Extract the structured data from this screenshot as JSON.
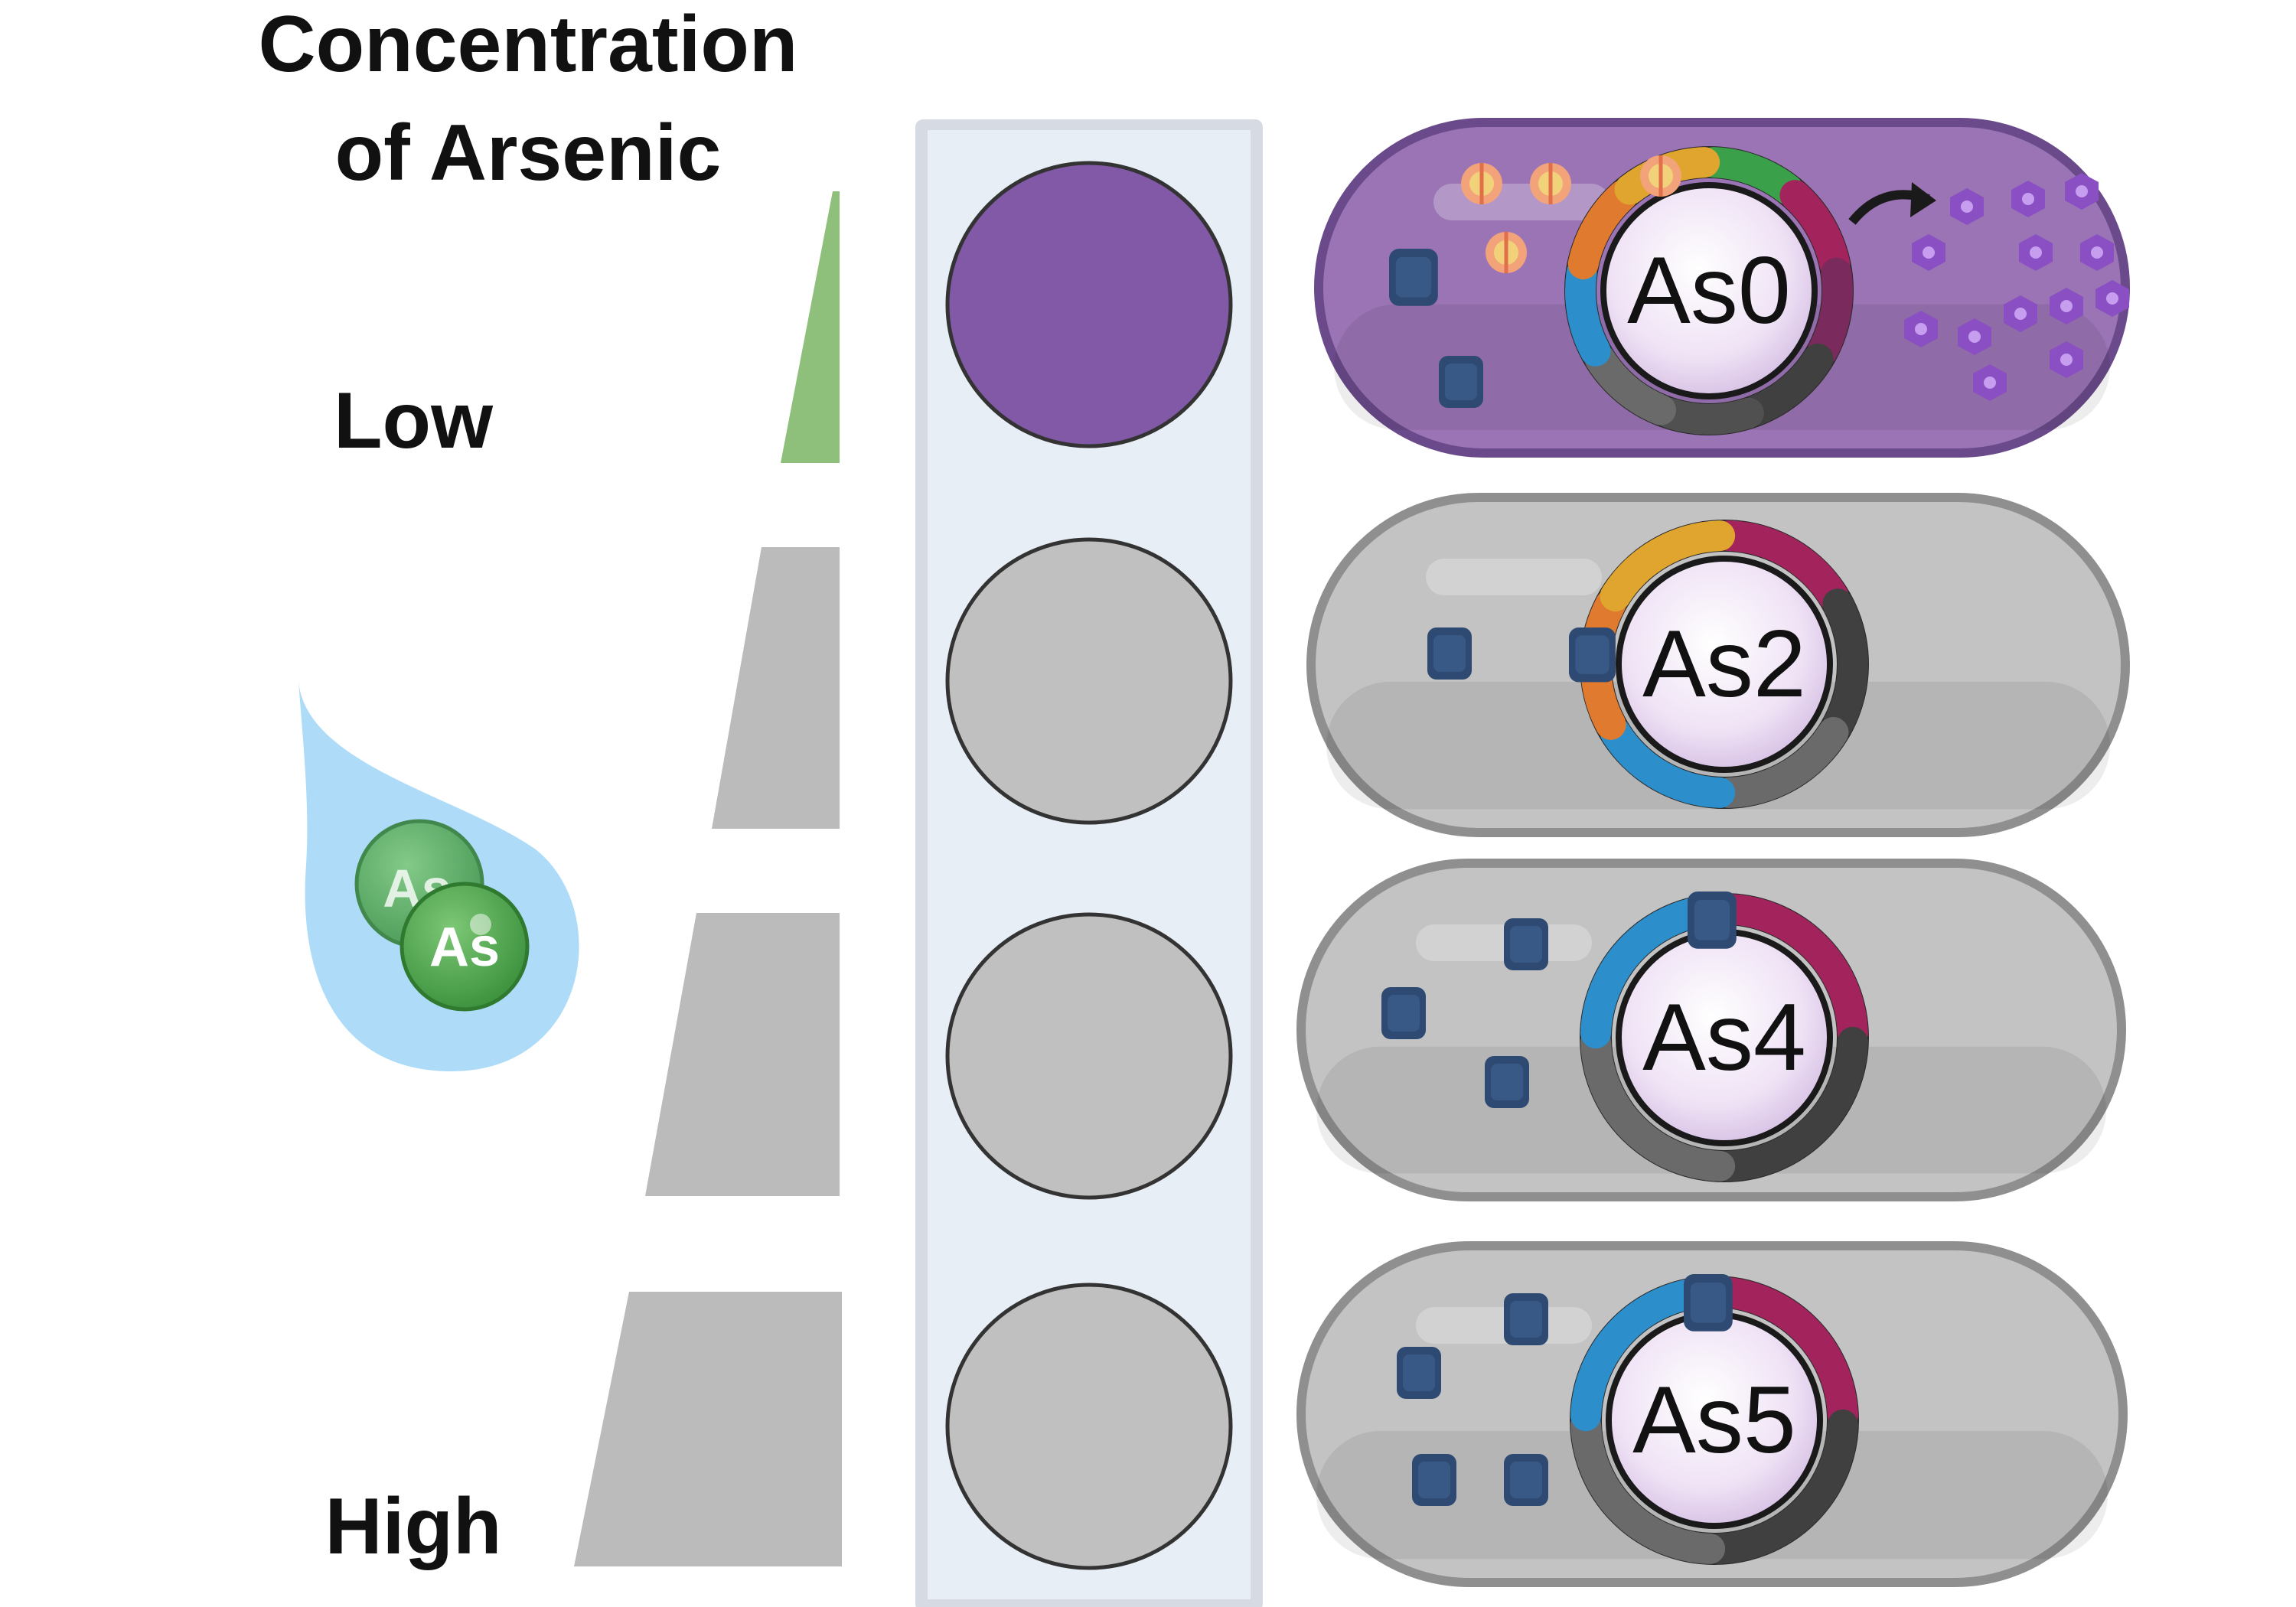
{
  "title": {
    "line1": "Concentration",
    "line2": "of Arsenic"
  },
  "scale": {
    "low_label": "Low",
    "high_label": "High"
  },
  "droplet": {
    "atom_label_back": "As",
    "atom_label_front": "As"
  },
  "colors": {
    "low_wedge": "#8ec07c",
    "gray_wedge": "#bbbbbb",
    "purple": "#8159a6",
    "gray_well": "#c0c0c0",
    "plate_bg": "#e8eef6",
    "droplet": "#aedcf8",
    "atom_green": "#5aaa55",
    "cell_purple": "#9a74b4",
    "cell_gray": "#c3c3c3",
    "protein_blue": "#2e4a72",
    "plasmid_center": "#f0e6f6"
  },
  "wells": [
    {
      "state": "purple"
    },
    {
      "state": "gray"
    },
    {
      "state": "gray"
    },
    {
      "state": "gray"
    }
  ],
  "cells": [
    {
      "plasmid_label": "As0",
      "color": "purple"
    },
    {
      "plasmid_label": "As2",
      "color": "gray"
    },
    {
      "plasmid_label": "As4",
      "color": "gray"
    },
    {
      "plasmid_label": "As5",
      "color": "gray"
    }
  ]
}
